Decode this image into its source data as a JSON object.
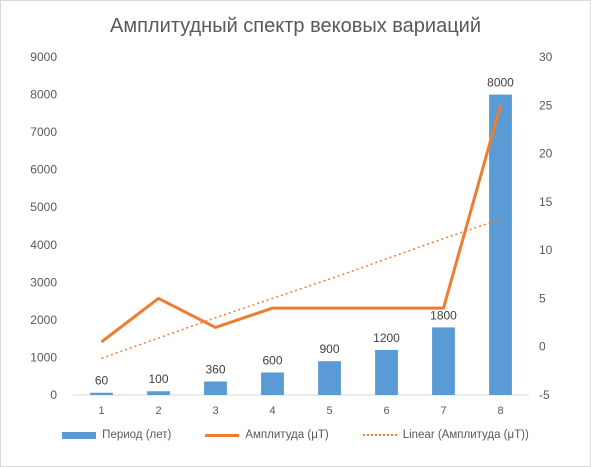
{
  "chart_data": {
    "type": "bar",
    "title": "Амплитудный спектр вековых вариаций",
    "categories": [
      "1",
      "2",
      "3",
      "4",
      "5",
      "6",
      "7",
      "8"
    ],
    "series": [
      {
        "name": "Период (лет)",
        "type": "bar",
        "axis": "left",
        "values": [
          60,
          100,
          360,
          600,
          900,
          1200,
          1800,
          8000
        ],
        "data_labels": [
          "60",
          "100",
          "360",
          "600",
          "900",
          "1200",
          "1800",
          "8000"
        ],
        "color": "#5b9bd5"
      },
      {
        "name": "Амплитуда (μT)",
        "type": "line",
        "axis": "right",
        "values": [
          0.5,
          5,
          2,
          4,
          4,
          4,
          4,
          25
        ],
        "color": "#ed7d31"
      },
      {
        "name": "Linear (Амплитуда (μT))",
        "type": "trendline",
        "axis": "right",
        "values": [
          -1.2,
          0.9,
          3.0,
          5.0,
          7.0,
          9.1,
          11.2,
          13.2
        ],
        "color": "#ed7d31"
      }
    ],
    "y_left": {
      "ylim": [
        0,
        9000
      ],
      "ticks": [
        "0",
        "1000",
        "2000",
        "3000",
        "4000",
        "5000",
        "6000",
        "7000",
        "8000",
        "9000"
      ]
    },
    "y_right": {
      "ylim": [
        -5,
        30
      ],
      "ticks": [
        "-5",
        "0",
        "5",
        "10",
        "15",
        "20",
        "25",
        "30"
      ]
    },
    "grid": false,
    "legend_position": "bottom"
  }
}
